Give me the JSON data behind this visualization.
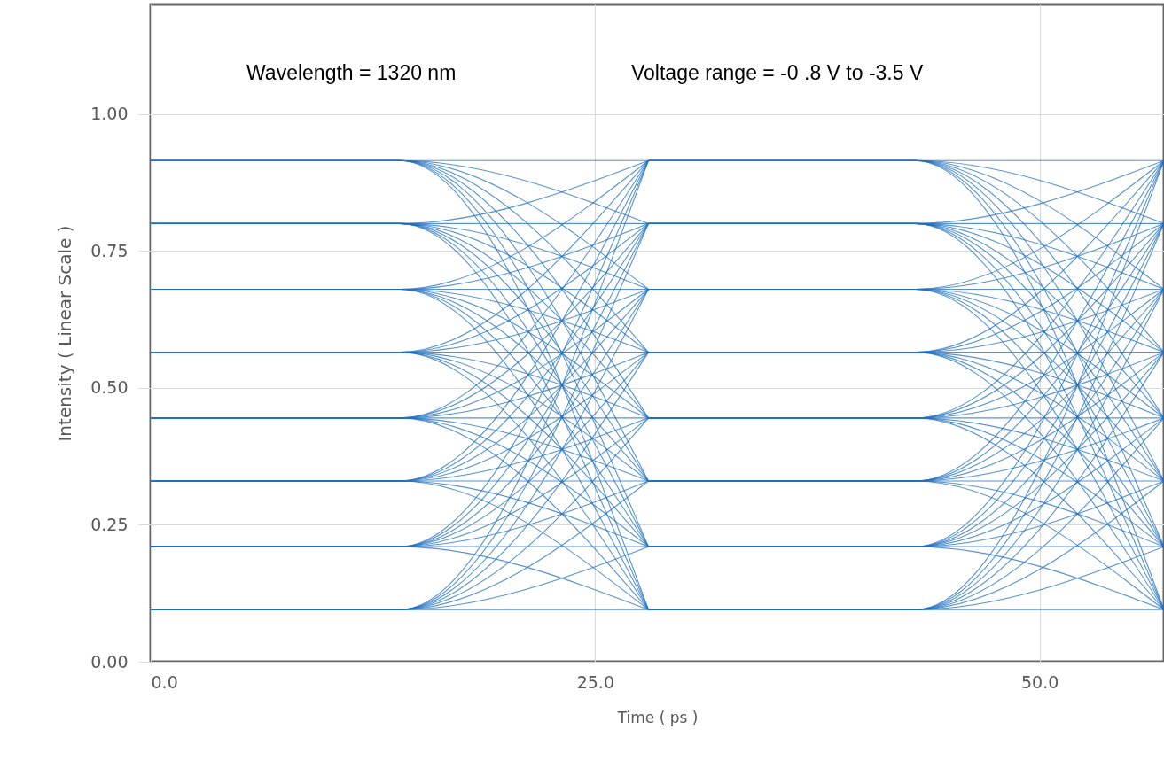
{
  "chart_data": {
    "type": "line",
    "xlabel": "Time  ( ps )",
    "ylabel": "Intensity  ( Linear Scale )",
    "annotations": [
      "Wavelength = 1320 nm",
      "Voltage range = -0 .8 V to -3.5 V"
    ],
    "x": [
      0,
      14,
      28
    ],
    "xlim": [
      0,
      57
    ],
    "xticks": [
      {
        "value": 0,
        "label": "0.0"
      },
      {
        "value": 25,
        "label": "25.0"
      },
      {
        "value": 50,
        "label": "50.0"
      }
    ],
    "ylim": [
      0,
      1.2
    ],
    "yticks": [
      {
        "value": 0,
        "label": "0.00"
      },
      0.25,
      {
        "value": 0.5,
        "label": "0.50"
      },
      0.75,
      {
        "value": 1,
        "label": "1.00"
      }
    ],
    "grid": true,
    "marker": "none",
    "line_style": "solid",
    "series": [
      {
        "color": "#1f6fc0",
        "values": [
          0.095,
          0.095,
          0.095
        ]
      },
      {
        "color": "#1f6fc0",
        "values": [
          0.095,
          0.095,
          0.21
        ]
      },
      {
        "color": "#1f6fc0",
        "values": [
          0.095,
          0.095,
          0.33
        ]
      },
      {
        "color": "#1f6fc0",
        "values": [
          0.095,
          0.095,
          0.445
        ]
      },
      {
        "color": "#1f6fc0",
        "values": [
          0.095,
          0.095,
          0.565
        ]
      },
      {
        "color": "#1f6fc0",
        "values": [
          0.095,
          0.095,
          0.68
        ]
      },
      {
        "color": "#1f6fc0",
        "values": [
          0.095,
          0.095,
          0.8
        ]
      },
      {
        "color": "#1f6fc0",
        "values": [
          0.095,
          0.095,
          0.915
        ]
      },
      {
        "color": "#1f6fc0",
        "values": [
          0.21,
          0.21,
          0.095
        ]
      },
      {
        "color": "#1f6fc0",
        "values": [
          0.21,
          0.21,
          0.21
        ]
      },
      {
        "color": "#1f6fc0",
        "values": [
          0.21,
          0.21,
          0.33
        ]
      },
      {
        "color": "#1f6fc0",
        "values": [
          0.21,
          0.21,
          0.445
        ]
      },
      {
        "color": "#1f6fc0",
        "values": [
          0.21,
          0.21,
          0.565
        ]
      },
      {
        "color": "#1f6fc0",
        "values": [
          0.21,
          0.21,
          0.68
        ]
      },
      {
        "color": "#1f6fc0",
        "values": [
          0.21,
          0.21,
          0.8
        ]
      },
      {
        "color": "#1f6fc0",
        "values": [
          0.21,
          0.21,
          0.915
        ]
      },
      {
        "color": "#1f6fc0",
        "values": [
          0.33,
          0.33,
          0.095
        ]
      },
      {
        "color": "#1f6fc0",
        "values": [
          0.33,
          0.33,
          0.21
        ]
      },
      {
        "color": "#1f6fc0",
        "values": [
          0.33,
          0.33,
          0.33
        ]
      },
      {
        "color": "#1f6fc0",
        "values": [
          0.33,
          0.33,
          0.445
        ]
      },
      {
        "color": "#1f6fc0",
        "values": [
          0.33,
          0.33,
          0.565
        ]
      },
      {
        "color": "#1f6fc0",
        "values": [
          0.33,
          0.33,
          0.68
        ]
      },
      {
        "color": "#1f6fc0",
        "values": [
          0.33,
          0.33,
          0.8
        ]
      },
      {
        "color": "#1f6fc0",
        "values": [
          0.33,
          0.33,
          0.915
        ]
      },
      {
        "color": "#1f6fc0",
        "values": [
          0.445,
          0.445,
          0.095
        ]
      },
      {
        "color": "#1f6fc0",
        "values": [
          0.445,
          0.445,
          0.21
        ]
      },
      {
        "color": "#1f6fc0",
        "values": [
          0.445,
          0.445,
          0.33
        ]
      },
      {
        "color": "#1f6fc0",
        "values": [
          0.445,
          0.445,
          0.445
        ]
      },
      {
        "color": "#1f6fc0",
        "values": [
          0.445,
          0.445,
          0.565
        ]
      },
      {
        "color": "#1f6fc0",
        "values": [
          0.445,
          0.445,
          0.68
        ]
      },
      {
        "color": "#1f6fc0",
        "values": [
          0.445,
          0.445,
          0.8
        ]
      },
      {
        "color": "#1f6fc0",
        "values": [
          0.445,
          0.445,
          0.915
        ]
      },
      {
        "color": "#1f6fc0",
        "values": [
          0.565,
          0.565,
          0.095
        ]
      },
      {
        "color": "#1f6fc0",
        "values": [
          0.565,
          0.565,
          0.21
        ]
      },
      {
        "color": "#1f6fc0",
        "values": [
          0.565,
          0.565,
          0.33
        ]
      },
      {
        "color": "#1f6fc0",
        "values": [
          0.565,
          0.565,
          0.445
        ]
      },
      {
        "color": "#1f6fc0",
        "values": [
          0.565,
          0.565,
          0.565
        ]
      },
      {
        "color": "#1f6fc0",
        "values": [
          0.565,
          0.565,
          0.68
        ]
      },
      {
        "color": "#1f6fc0",
        "values": [
          0.565,
          0.565,
          0.8
        ]
      },
      {
        "color": "#1f6fc0",
        "values": [
          0.565,
          0.565,
          0.915
        ]
      },
      {
        "color": "#1f6fc0",
        "values": [
          0.68,
          0.68,
          0.095
        ]
      },
      {
        "color": "#1f6fc0",
        "values": [
          0.68,
          0.68,
          0.21
        ]
      },
      {
        "color": "#1f6fc0",
        "values": [
          0.68,
          0.68,
          0.33
        ]
      },
      {
        "color": "#1f6fc0",
        "values": [
          0.68,
          0.68,
          0.445
        ]
      },
      {
        "color": "#1f6fc0",
        "values": [
          0.68,
          0.68,
          0.565
        ]
      },
      {
        "color": "#1f6fc0",
        "values": [
          0.68,
          0.68,
          0.68
        ]
      },
      {
        "color": "#1f6fc0",
        "values": [
          0.68,
          0.68,
          0.8
        ]
      },
      {
        "color": "#1f6fc0",
        "values": [
          0.68,
          0.68,
          0.915
        ]
      },
      {
        "color": "#1f6fc0",
        "values": [
          0.8,
          0.8,
          0.095
        ]
      },
      {
        "color": "#1f6fc0",
        "values": [
          0.8,
          0.8,
          0.21
        ]
      },
      {
        "color": "#1f6fc0",
        "values": [
          0.8,
          0.8,
          0.33
        ]
      },
      {
        "color": "#1f6fc0",
        "values": [
          0.8,
          0.8,
          0.445
        ]
      },
      {
        "color": "#1f6fc0",
        "values": [
          0.8,
          0.8,
          0.565
        ]
      },
      {
        "color": "#1f6fc0",
        "values": [
          0.8,
          0.8,
          0.68
        ]
      },
      {
        "color": "#1f6fc0",
        "values": [
          0.8,
          0.8,
          0.8
        ]
      },
      {
        "color": "#1f6fc0",
        "values": [
          0.8,
          0.8,
          0.915
        ]
      },
      {
        "color": "#1f6fc0",
        "values": [
          0.915,
          0.915,
          0.095
        ]
      },
      {
        "color": "#1f6fc0",
        "values": [
          0.915,
          0.915,
          0.21
        ]
      },
      {
        "color": "#1f6fc0",
        "values": [
          0.915,
          0.915,
          0.33
        ]
      },
      {
        "color": "#1f6fc0",
        "values": [
          0.915,
          0.915,
          0.445
        ]
      },
      {
        "color": "#1f6fc0",
        "values": [
          0.915,
          0.915,
          0.565
        ]
      },
      {
        "color": "#1f6fc0",
        "values": [
          0.915,
          0.915,
          0.68
        ]
      },
      {
        "color": "#1f6fc0",
        "values": [
          0.915,
          0.915,
          0.8
        ]
      },
      {
        "color": "#1f6fc0",
        "values": [
          0.915,
          0.915,
          0.915
        ]
      },
      {
        "color": "#1f6fc0",
        "x": [
          28,
          43,
          57
        ],
        "values": [
          0.095,
          0.095,
          0.095
        ]
      },
      {
        "color": "#1f6fc0",
        "x": [
          28,
          43,
          57
        ],
        "values": [
          0.095,
          0.095,
          0.21
        ]
      },
      {
        "color": "#1f6fc0",
        "x": [
          28,
          43,
          57
        ],
        "values": [
          0.095,
          0.095,
          0.33
        ]
      },
      {
        "color": "#1f6fc0",
        "x": [
          28,
          43,
          57
        ],
        "values": [
          0.095,
          0.095,
          0.445
        ]
      },
      {
        "color": "#1f6fc0",
        "x": [
          28,
          43,
          57
        ],
        "values": [
          0.095,
          0.095,
          0.565
        ]
      },
      {
        "color": "#1f6fc0",
        "x": [
          28,
          43,
          57
        ],
        "values": [
          0.095,
          0.095,
          0.68
        ]
      },
      {
        "color": "#1f6fc0",
        "x": [
          28,
          43,
          57
        ],
        "values": [
          0.095,
          0.095,
          0.8
        ]
      },
      {
        "color": "#1f6fc0",
        "x": [
          28,
          43,
          57
        ],
        "values": [
          0.095,
          0.095,
          0.915
        ]
      },
      {
        "color": "#1f6fc0",
        "x": [
          28,
          43,
          57
        ],
        "values": [
          0.21,
          0.21,
          0.095
        ]
      },
      {
        "color": "#1f6fc0",
        "x": [
          28,
          43,
          57
        ],
        "values": [
          0.21,
          0.21,
          0.21
        ]
      },
      {
        "color": "#1f6fc0",
        "x": [
          28,
          43,
          57
        ],
        "values": [
          0.21,
          0.21,
          0.33
        ]
      },
      {
        "color": "#1f6fc0",
        "x": [
          28,
          43,
          57
        ],
        "values": [
          0.21,
          0.21,
          0.445
        ]
      },
      {
        "color": "#1f6fc0",
        "x": [
          28,
          43,
          57
        ],
        "values": [
          0.21,
          0.21,
          0.565
        ]
      },
      {
        "color": "#1f6fc0",
        "x": [
          28,
          43,
          57
        ],
        "values": [
          0.21,
          0.21,
          0.68
        ]
      },
      {
        "color": "#1f6fc0",
        "x": [
          28,
          43,
          57
        ],
        "values": [
          0.21,
          0.21,
          0.8
        ]
      },
      {
        "color": "#1f6fc0",
        "x": [
          28,
          43,
          57
        ],
        "values": [
          0.21,
          0.21,
          0.915
        ]
      },
      {
        "color": "#1f6fc0",
        "x": [
          28,
          43,
          57
        ],
        "values": [
          0.33,
          0.33,
          0.095
        ]
      },
      {
        "color": "#1f6fc0",
        "x": [
          28,
          43,
          57
        ],
        "values": [
          0.33,
          0.33,
          0.21
        ]
      },
      {
        "color": "#1f6fc0",
        "x": [
          28,
          43,
          57
        ],
        "values": [
          0.33,
          0.33,
          0.33
        ]
      },
      {
        "color": "#1f6fc0",
        "x": [
          28,
          43,
          57
        ],
        "values": [
          0.33,
          0.33,
          0.445
        ]
      },
      {
        "color": "#1f6fc0",
        "x": [
          28,
          43,
          57
        ],
        "values": [
          0.33,
          0.33,
          0.565
        ]
      },
      {
        "color": "#1f6fc0",
        "x": [
          28,
          43,
          57
        ],
        "values": [
          0.33,
          0.33,
          0.68
        ]
      },
      {
        "color": "#1f6fc0",
        "x": [
          28,
          43,
          57
        ],
        "values": [
          0.33,
          0.33,
          0.8
        ]
      },
      {
        "color": "#1f6fc0",
        "x": [
          28,
          43,
          57
        ],
        "values": [
          0.33,
          0.33,
          0.915
        ]
      },
      {
        "color": "#1f6fc0",
        "x": [
          28,
          43,
          57
        ],
        "values": [
          0.445,
          0.445,
          0.095
        ]
      },
      {
        "color": "#1f6fc0",
        "x": [
          28,
          43,
          57
        ],
        "values": [
          0.445,
          0.445,
          0.21
        ]
      },
      {
        "color": "#1f6fc0",
        "x": [
          28,
          43,
          57
        ],
        "values": [
          0.445,
          0.445,
          0.33
        ]
      },
      {
        "color": "#1f6fc0",
        "x": [
          28,
          43,
          57
        ],
        "values": [
          0.445,
          0.445,
          0.445
        ]
      },
      {
        "color": "#1f6fc0",
        "x": [
          28,
          43,
          57
        ],
        "values": [
          0.445,
          0.445,
          0.565
        ]
      },
      {
        "color": "#1f6fc0",
        "x": [
          28,
          43,
          57
        ],
        "values": [
          0.445,
          0.445,
          0.68
        ]
      },
      {
        "color": "#1f6fc0",
        "x": [
          28,
          43,
          57
        ],
        "values": [
          0.445,
          0.445,
          0.8
        ]
      },
      {
        "color": "#1f6fc0",
        "x": [
          28,
          43,
          57
        ],
        "values": [
          0.445,
          0.445,
          0.915
        ]
      },
      {
        "color": "#1f6fc0",
        "x": [
          28,
          43,
          57
        ],
        "values": [
          0.565,
          0.565,
          0.095
        ]
      },
      {
        "color": "#1f6fc0",
        "x": [
          28,
          43,
          57
        ],
        "values": [
          0.565,
          0.565,
          0.21
        ]
      },
      {
        "color": "#1f6fc0",
        "x": [
          28,
          43,
          57
        ],
        "values": [
          0.565,
          0.565,
          0.33
        ]
      },
      {
        "color": "#1f6fc0",
        "x": [
          28,
          43,
          57
        ],
        "values": [
          0.565,
          0.565,
          0.445
        ]
      },
      {
        "color": "#1f6fc0",
        "x": [
          28,
          43,
          57
        ],
        "values": [
          0.565,
          0.565,
          0.565
        ]
      },
      {
        "color": "#1f6fc0",
        "x": [
          28,
          43,
          57
        ],
        "values": [
          0.565,
          0.565,
          0.68
        ]
      },
      {
        "color": "#1f6fc0",
        "x": [
          28,
          43,
          57
        ],
        "values": [
          0.565,
          0.565,
          0.8
        ]
      },
      {
        "color": "#1f6fc0",
        "x": [
          28,
          43,
          57
        ],
        "values": [
          0.565,
          0.565,
          0.915
        ]
      },
      {
        "color": "#1f6fc0",
        "x": [
          28,
          43,
          57
        ],
        "values": [
          0.68,
          0.68,
          0.095
        ]
      },
      {
        "color": "#1f6fc0",
        "x": [
          28,
          43,
          57
        ],
        "values": [
          0.68,
          0.68,
          0.21
        ]
      },
      {
        "color": "#1f6fc0",
        "x": [
          28,
          43,
          57
        ],
        "values": [
          0.68,
          0.68,
          0.33
        ]
      },
      {
        "color": "#1f6fc0",
        "x": [
          28,
          43,
          57
        ],
        "values": [
          0.68,
          0.68,
          0.445
        ]
      },
      {
        "color": "#1f6fc0",
        "x": [
          28,
          43,
          57
        ],
        "values": [
          0.68,
          0.68,
          0.565
        ]
      },
      {
        "color": "#1f6fc0",
        "x": [
          28,
          43,
          57
        ],
        "values": [
          0.68,
          0.68,
          0.68
        ]
      },
      {
        "color": "#1f6fc0",
        "x": [
          28,
          43,
          57
        ],
        "values": [
          0.68,
          0.68,
          0.8
        ]
      },
      {
        "color": "#1f6fc0",
        "x": [
          28,
          43,
          57
        ],
        "values": [
          0.68,
          0.68,
          0.915
        ]
      },
      {
        "color": "#1f6fc0",
        "x": [
          28,
          43,
          57
        ],
        "values": [
          0.8,
          0.8,
          0.095
        ]
      },
      {
        "color": "#1f6fc0",
        "x": [
          28,
          43,
          57
        ],
        "values": [
          0.8,
          0.8,
          0.21
        ]
      },
      {
        "color": "#1f6fc0",
        "x": [
          28,
          43,
          57
        ],
        "values": [
          0.8,
          0.8,
          0.33
        ]
      },
      {
        "color": "#1f6fc0",
        "x": [
          28,
          43,
          57
        ],
        "values": [
          0.8,
          0.8,
          0.445
        ]
      },
      {
        "color": "#1f6fc0",
        "x": [
          28,
          43,
          57
        ],
        "values": [
          0.8,
          0.8,
          0.565
        ]
      },
      {
        "color": "#1f6fc0",
        "x": [
          28,
          43,
          57
        ],
        "values": [
          0.8,
          0.8,
          0.68
        ]
      },
      {
        "color": "#1f6fc0",
        "x": [
          28,
          43,
          57
        ],
        "values": [
          0.8,
          0.8,
          0.8
        ]
      },
      {
        "color": "#1f6fc0",
        "x": [
          28,
          43,
          57
        ],
        "values": [
          0.8,
          0.8,
          0.915
        ]
      },
      {
        "color": "#1f6fc0",
        "x": [
          28,
          43,
          57
        ],
        "values": [
          0.915,
          0.915,
          0.095
        ]
      },
      {
        "color": "#1f6fc0",
        "x": [
          28,
          43,
          57
        ],
        "values": [
          0.915,
          0.915,
          0.21
        ]
      },
      {
        "color": "#1f6fc0",
        "x": [
          28,
          43,
          57
        ],
        "values": [
          0.915,
          0.915,
          0.33
        ]
      },
      {
        "color": "#1f6fc0",
        "x": [
          28,
          43,
          57
        ],
        "values": [
          0.915,
          0.915,
          0.445
        ]
      },
      {
        "color": "#1f6fc0",
        "x": [
          28,
          43,
          57
        ],
        "values": [
          0.915,
          0.915,
          0.565
        ]
      },
      {
        "color": "#1f6fc0",
        "x": [
          28,
          43,
          57
        ],
        "values": [
          0.915,
          0.915,
          0.68
        ]
      },
      {
        "color": "#1f6fc0",
        "x": [
          28,
          43,
          57
        ],
        "values": [
          0.915,
          0.915,
          0.8
        ]
      },
      {
        "color": "#1f6fc0",
        "x": [
          28,
          43,
          57
        ],
        "values": [
          0.915,
          0.915,
          0.915
        ]
      }
    ]
  }
}
